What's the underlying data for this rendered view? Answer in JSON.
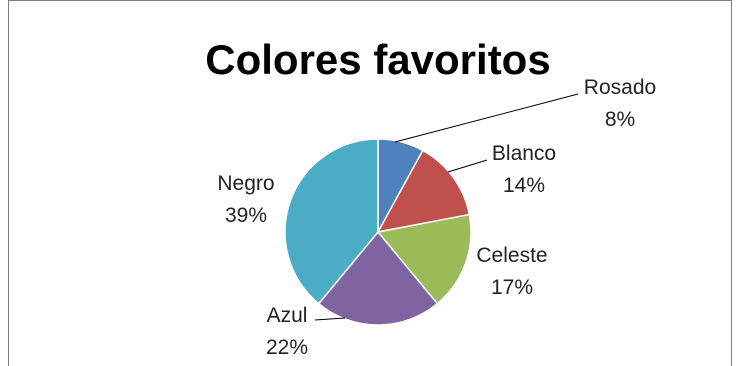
{
  "chart_data": {
    "type": "pie",
    "title": "Colores favoritos",
    "slices": [
      {
        "label": "Rosado",
        "value": 8,
        "pct_label": "8%",
        "color": "#4f81bd"
      },
      {
        "label": "Blanco",
        "value": 14,
        "pct_label": "14%",
        "color": "#c0504d"
      },
      {
        "label": "Celeste",
        "value": 17,
        "pct_label": "17%",
        "color": "#9bbb59"
      },
      {
        "label": "Azul",
        "value": 22,
        "pct_label": "22%",
        "color": "#8064a2"
      },
      {
        "label": "Negro",
        "value": 39,
        "pct_label": "39%",
        "color": "#4bacc6"
      }
    ],
    "legend": "none",
    "data_labels": "outside with leader lines"
  }
}
